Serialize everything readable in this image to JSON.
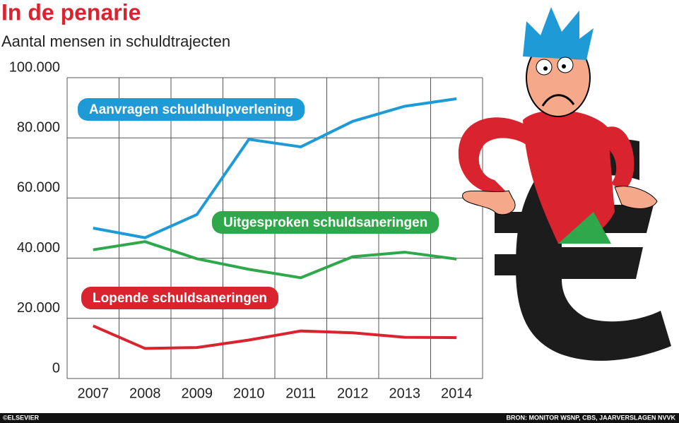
{
  "chart_data": {
    "type": "line",
    "title": "In de penarie",
    "subtitle": "Aantal mensen in schuldtrajecten",
    "categories": [
      "2007",
      "2008",
      "2009",
      "2010",
      "2011",
      "2012",
      "2013",
      "2014"
    ],
    "series": [
      {
        "name": "Aanvragen schuldhulpverlening",
        "color": "#1e9bd7",
        "values": [
          50000,
          46800,
          54500,
          79500,
          77000,
          85500,
          90500,
          93000
        ]
      },
      {
        "name": "Uitgesproken schuldsaneringen",
        "color": "#2ea84a",
        "values": [
          42800,
          45500,
          39800,
          36300,
          33500,
          40500,
          42000,
          39700
        ]
      },
      {
        "name": "Lopende schuldsaneringen",
        "color": "#d9232e",
        "values": [
          17500,
          10000,
          10300,
          12800,
          15800,
          15200,
          13700,
          13600
        ]
      }
    ],
    "ylim": [
      0,
      100000
    ],
    "yticks": [
      0,
      {
        "value": 20000,
        "label": "20.000"
      },
      {
        "value": 40000,
        "label": "40.000"
      },
      {
        "value": 60000,
        "label": "60.000"
      },
      {
        "value": 80000,
        "label": "80.000"
      },
      {
        "value": 100000,
        "label": "100.000"
      }
    ],
    "grid": true,
    "credit": "©ELSEVIER",
    "source": "BRON: MONITOR WSNP, CBS, JAARVERSLAGEN NVVK"
  }
}
